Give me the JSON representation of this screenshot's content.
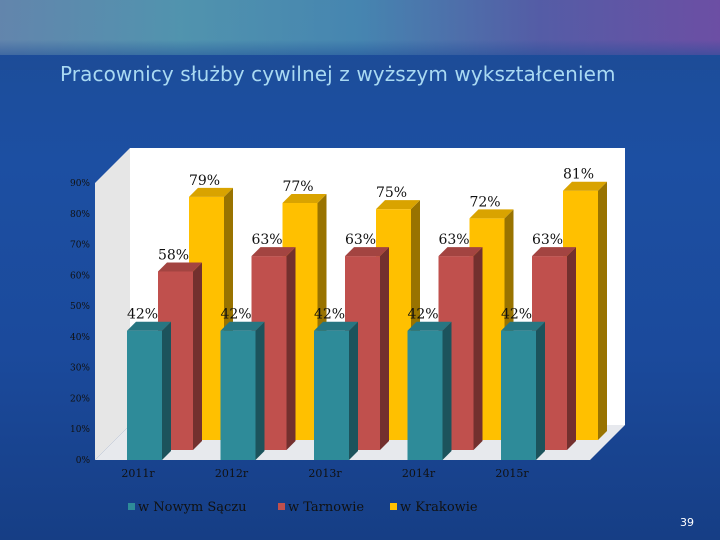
{
  "slide": {
    "title": "Pracownicy służby cywilnej z wyższym wykształceniem",
    "page_number": "39"
  },
  "chart_data": {
    "type": "bar",
    "title": "",
    "xlabel": "",
    "ylabel": "",
    "ylim": [
      0,
      90
    ],
    "y_ticks": [
      "0%",
      "10%",
      "20%",
      "30%",
      "40%",
      "50%",
      "60%",
      "70%",
      "80%",
      "90%"
    ],
    "categories": [
      "2011r",
      "2012r",
      "2013r",
      "2014r",
      "2015r"
    ],
    "series": [
      {
        "name": "w Nowym Sączu",
        "values": [
          42,
          42,
          42,
          42,
          42
        ],
        "labels": [
          "42%",
          "42%",
          "42%",
          "42%",
          "42%"
        ],
        "color": "#2e8b99"
      },
      {
        "name": "w Tarnowie",
        "values": [
          58,
          63,
          63,
          63,
          63
        ],
        "labels": [
          "58%",
          "63%",
          "63%",
          "63%",
          "63%"
        ],
        "color": "#c0504d"
      },
      {
        "name": "w Krakowie",
        "values": [
          79,
          77,
          75,
          72,
          81
        ],
        "labels": [
          "79%",
          "77%",
          "75%",
          "72%",
          "81%"
        ],
        "color": "#ffc000"
      }
    ],
    "legend_position": "bottom",
    "grid": false,
    "chart_style": "3d-bars",
    "colors": {
      "wall": "#ffffff",
      "side_wall": "#e6e6e6",
      "label_text": "#111111",
      "axis_text": "#111111"
    }
  }
}
